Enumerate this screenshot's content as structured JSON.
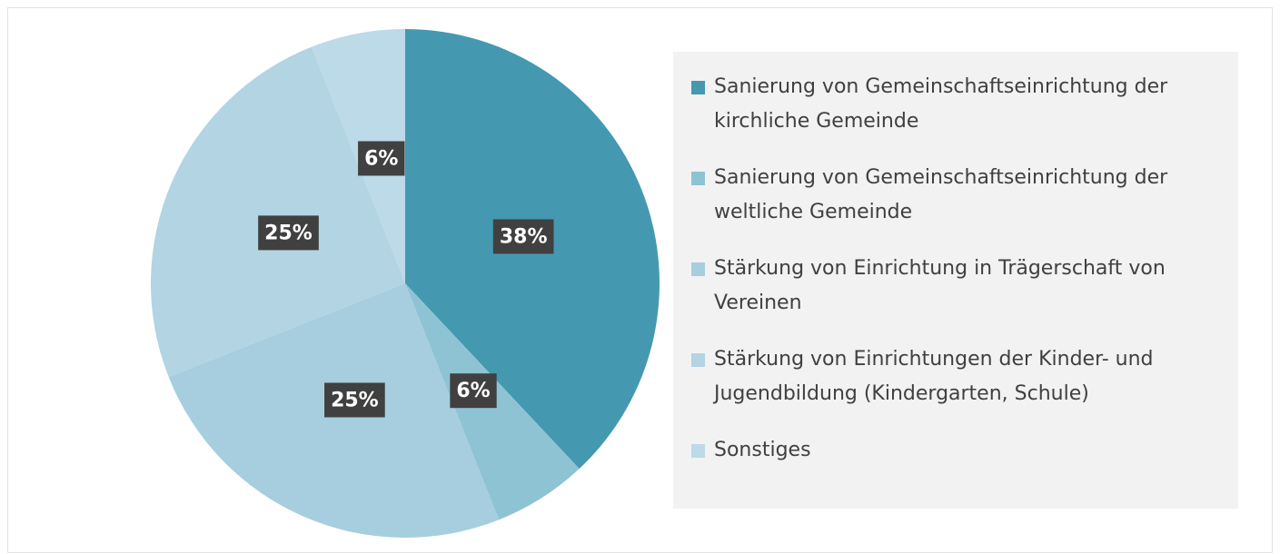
{
  "chart_data": {
    "type": "pie",
    "categories": [
      "Sanierung von Gemeinschaftseinrichtung der kirchliche Gemeinde",
      "Sanierung von Gemeinschaftseinrichtung der weltliche Gemeinde",
      "Stärkung von Einrichtung in Trägerschaft von Vereinen",
      "Stärkung von Einrichtungen der Kinder- und Jugendbildung (Kindergarten, Schule)",
      "Sonstiges"
    ],
    "values": [
      38,
      6,
      25,
      25,
      6
    ],
    "value_labels": [
      "38%",
      "6%",
      "25%",
      "25%",
      "6%"
    ],
    "colors": [
      "#4499b0",
      "#8ec3d4",
      "#a6cede",
      "#b2d4e3",
      "#bcdae7"
    ],
    "legend": "right"
  }
}
